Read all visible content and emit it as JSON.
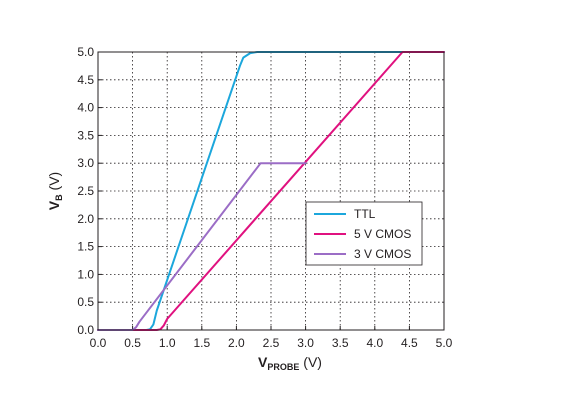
{
  "chart_data": {
    "type": "line",
    "xlabel": {
      "main": "V",
      "sub": "PROBE",
      "unit": " (V)"
    },
    "ylabel": {
      "main": "V",
      "sub": "B",
      "unit": " (V)"
    },
    "xlim": [
      0,
      5
    ],
    "ylim": [
      0,
      5
    ],
    "xticks": [
      "0.0",
      "0.5",
      "1.0",
      "1.5",
      "2.0",
      "2.5",
      "3.0",
      "3.5",
      "4.0",
      "4.5",
      "5.0"
    ],
    "yticks": [
      "0.0",
      "0.5",
      "1.0",
      "1.5",
      "2.0",
      "2.5",
      "3.0",
      "3.5",
      "4.0",
      "4.5",
      "5.0"
    ],
    "grid": true,
    "legend_position": "center-right",
    "series": [
      {
        "name": "TTL",
        "color": "#1ca7dc",
        "points": [
          [
            0,
            0
          ],
          [
            0.7,
            0
          ],
          [
            0.75,
            0.01
          ],
          [
            0.8,
            0.1
          ],
          [
            0.85,
            0.35
          ],
          [
            2.05,
            4.75
          ],
          [
            2.1,
            4.9
          ],
          [
            2.2,
            4.98
          ],
          [
            2.3,
            5.0
          ],
          [
            5.0,
            5.0
          ]
        ]
      },
      {
        "name": "5 V CMOS",
        "color": "#e0117f",
        "points": [
          [
            0,
            0
          ],
          [
            0.85,
            0
          ],
          [
            0.9,
            0.01
          ],
          [
            0.95,
            0.08
          ],
          [
            1.0,
            0.2
          ],
          [
            4.4,
            5.0
          ],
          [
            5.0,
            5.0
          ]
        ]
      },
      {
        "name": "3 V CMOS",
        "color": "#9b6dc6",
        "points": [
          [
            0,
            0
          ],
          [
            0.5,
            0
          ],
          [
            0.55,
            0.05
          ],
          [
            0.6,
            0.15
          ],
          [
            2.35,
            3.0
          ],
          [
            3.0,
            3.0
          ]
        ]
      }
    ]
  }
}
